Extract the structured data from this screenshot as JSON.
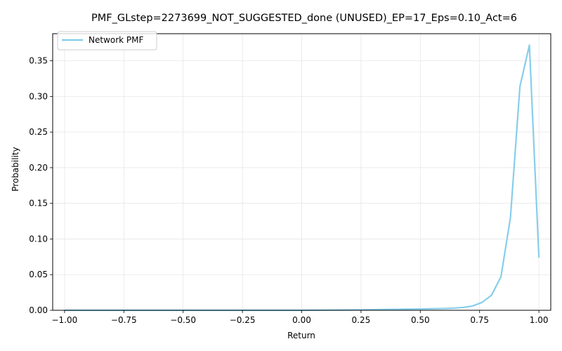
{
  "chart_data": {
    "type": "line",
    "title": "PMF_GLstep=2273699_NOT_SUGGESTED_done (UNUSED)_EP=17_Eps=0.10_Act=6",
    "xlabel": "Return",
    "ylabel": "Probability",
    "xlim": [
      -1.05,
      1.05
    ],
    "ylim": [
      0.0,
      0.388
    ],
    "xticks": [
      -1.0,
      -0.75,
      -0.5,
      -0.25,
      0.0,
      0.25,
      0.5,
      0.75,
      1.0
    ],
    "xtick_labels": [
      "−1.00",
      "−0.75",
      "−0.50",
      "−0.25",
      "0.00",
      "0.25",
      "0.50",
      "0.75",
      "1.00"
    ],
    "yticks": [
      0.0,
      0.05,
      0.1,
      0.15,
      0.2,
      0.25,
      0.3,
      0.35
    ],
    "ytick_labels": [
      "0.00",
      "0.05",
      "0.10",
      "0.15",
      "0.20",
      "0.25",
      "0.30",
      "0.35"
    ],
    "grid": true,
    "legend_position": "top-left",
    "series": [
      {
        "name": "Network PMF",
        "color": "#87CEEB",
        "x": [
          -1.0,
          -0.96,
          -0.92,
          -0.88,
          -0.84,
          -0.8,
          -0.76,
          -0.72,
          -0.68,
          -0.64,
          -0.6,
          -0.56,
          -0.52,
          -0.48,
          -0.44,
          -0.4,
          -0.36,
          -0.32,
          -0.28,
          -0.24,
          -0.2,
          -0.16,
          -0.12,
          -0.08,
          -0.04,
          0.0,
          0.04,
          0.08,
          0.12,
          0.16,
          0.2,
          0.24,
          0.28,
          0.32,
          0.36,
          0.4,
          0.44,
          0.48,
          0.52,
          0.56,
          0.6,
          0.64,
          0.68,
          0.72,
          0.76,
          0.8,
          0.84,
          0.88,
          0.92,
          0.96,
          1.0
        ],
        "y": [
          0.0,
          0.0,
          0.0,
          0.0,
          0.0,
          0.0,
          0.0,
          0.0,
          0.0,
          0.0,
          0.0,
          0.0,
          0.0,
          0.0,
          0.0,
          0.0,
          0.0,
          0.0,
          0.0,
          0.0,
          0.0,
          0.0,
          0.0,
          0.0,
          0.0,
          0.0,
          0.0001,
          0.0002,
          0.0003,
          0.0004,
          0.0005,
          0.0006,
          0.0008,
          0.001,
          0.0012,
          0.0014,
          0.0016,
          0.0018,
          0.002,
          0.0022,
          0.0025,
          0.003,
          0.004,
          0.006,
          0.011,
          0.021,
          0.047,
          0.13,
          0.314,
          0.372,
          0.074
        ]
      }
    ]
  }
}
